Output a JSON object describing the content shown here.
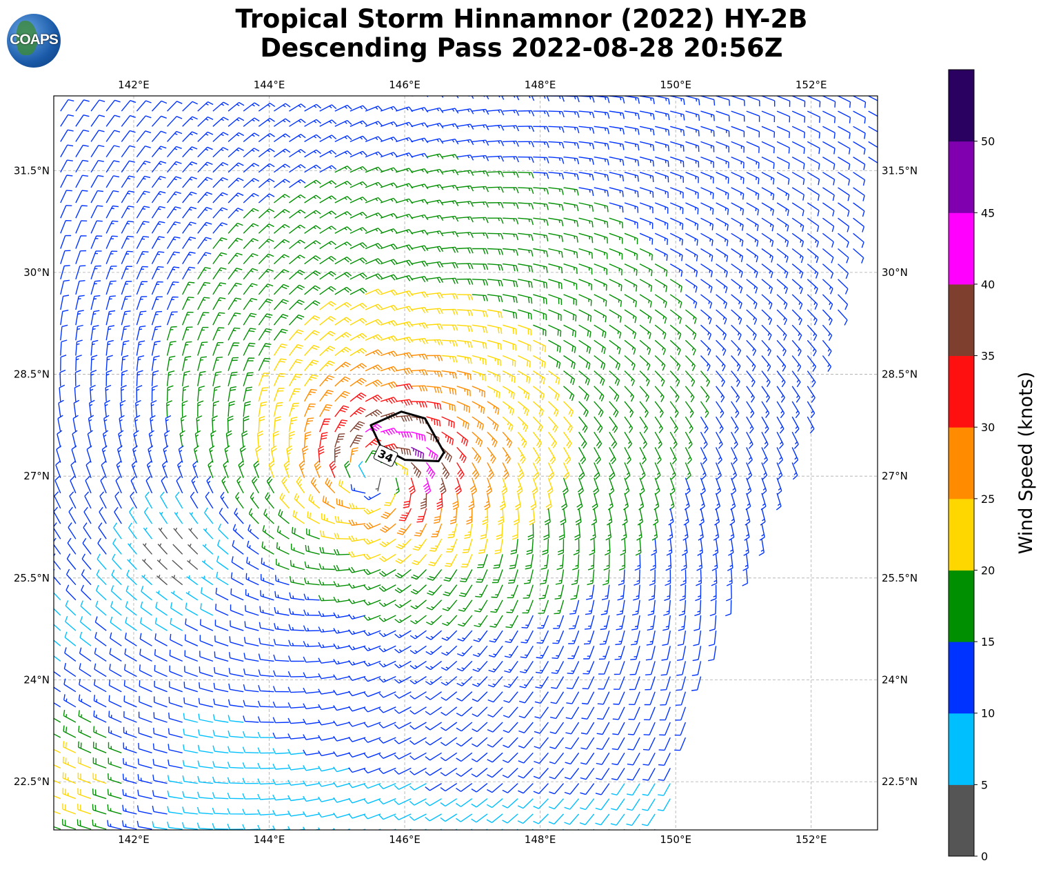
{
  "header": {
    "title_line1": "Tropical Storm Hinnamnor (2022) HY-2B",
    "title_line2": "Descending Pass 2022-08-28 20:56Z",
    "logo_text": "COAPS"
  },
  "chart_data": {
    "type": "wind-barb-map",
    "lon_range": [
      140.82,
      152.98
    ],
    "lat_range": [
      21.79,
      32.6
    ],
    "lon_ticks": [
      142,
      144,
      146,
      148,
      150,
      152
    ],
    "lon_tick_labels": [
      "142°E",
      "144°E",
      "146°E",
      "148°E",
      "150°E",
      "152°E"
    ],
    "lat_ticks": [
      31.5,
      30,
      28.5,
      27,
      25.5,
      24,
      22.5
    ],
    "lat_tick_labels": [
      "31.5°N",
      "30°N",
      "28.5°N",
      "27°N",
      "25.5°N",
      "24°N",
      "22.5°N"
    ],
    "grid": true,
    "storm": {
      "center_lon": 145.6,
      "center_lat": 27.0,
      "rmax_deg": 0.6,
      "vmax_kt": 38,
      "asym": 0.25,
      "inflow_deg": 20
    },
    "calm_center": {
      "lon": 142.7,
      "lat": 25.8
    },
    "swath_east_edge": [
      [
        153.0,
        32.6
      ],
      [
        152.6,
        30
      ],
      [
        151.7,
        27
      ],
      [
        150.4,
        24
      ],
      [
        149.8,
        21.79
      ]
    ],
    "contour": {
      "level_label": "34",
      "points": [
        [
          145.5,
          27.75
        ],
        [
          145.95,
          27.95
        ],
        [
          146.3,
          27.85
        ],
        [
          146.58,
          27.35
        ],
        [
          146.5,
          27.22
        ],
        [
          146.0,
          27.24
        ],
        [
          145.65,
          27.43
        ]
      ],
      "label_lon": 145.72,
      "label_lat": 27.3
    },
    "colorbar": {
      "label": "Wind Speed (knots)",
      "bounds": [
        0,
        5,
        10,
        15,
        20,
        25,
        30,
        35,
        40,
        45,
        50,
        55
      ],
      "tick_labels": [
        "0",
        "5",
        "10",
        "15",
        "20",
        "25",
        "30",
        "35",
        "40",
        "45",
        "50"
      ],
      "colors": [
        "#555555",
        "#00bfff",
        "#0033ff",
        "#008f00",
        "#ffd700",
        "#ff8c00",
        "#ff1010",
        "#7f3f2f",
        "#ff00ff",
        "#8000b0",
        "#2a0060"
      ]
    }
  }
}
